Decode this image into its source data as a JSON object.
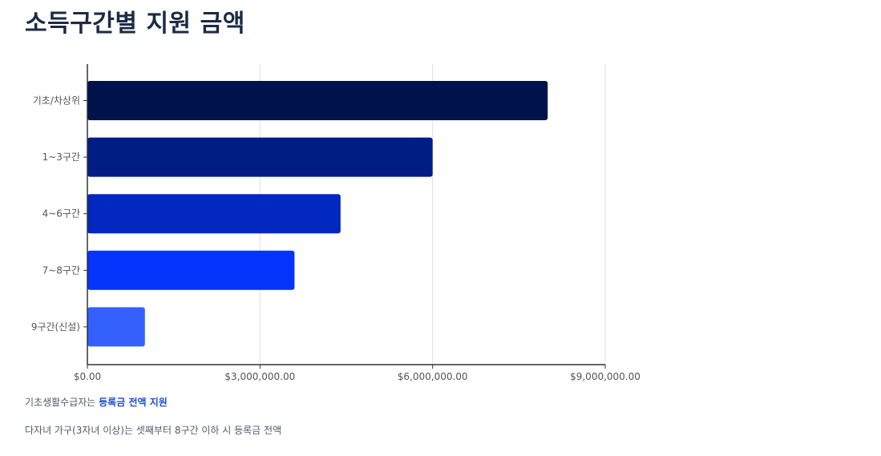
{
  "page": {
    "title": "소득구간별 지원 금액"
  },
  "notes": {
    "line1_prefix": "기초생활수급자는 ",
    "line1_highlight": "등록금 전액 지원",
    "line2": "다자녀 가구(3자녀 이상)는 셋째부터 8구간 이하 시 등록금 전액"
  },
  "colors": {
    "bars": [
      "#00124b",
      "#001d85",
      "#0328bf",
      "#0434fb",
      "#3461fe"
    ],
    "gridline": "#e2e2e2",
    "axis": "#333333",
    "tick_label": "#555555",
    "highlight": "#1f4fd1"
  },
  "chart_data": {
    "type": "bar",
    "orientation": "horizontal",
    "categories": [
      "기초/차상위",
      "1~3구간",
      "4~6구간",
      "7~8구간",
      "9구간(신설)"
    ],
    "values": [
      8000000,
      6000000,
      4400000,
      3600000,
      1000000
    ],
    "xlim": [
      0,
      9000000
    ],
    "x_ticks": [
      0,
      3000000,
      6000000,
      9000000
    ],
    "x_tick_labels": [
      "$0.00",
      "$3,000,000.00",
      "$6,000,000.00",
      "$9,000,000.00"
    ],
    "title": "",
    "xlabel": "",
    "ylabel": "",
    "grid": true,
    "legend": false
  }
}
